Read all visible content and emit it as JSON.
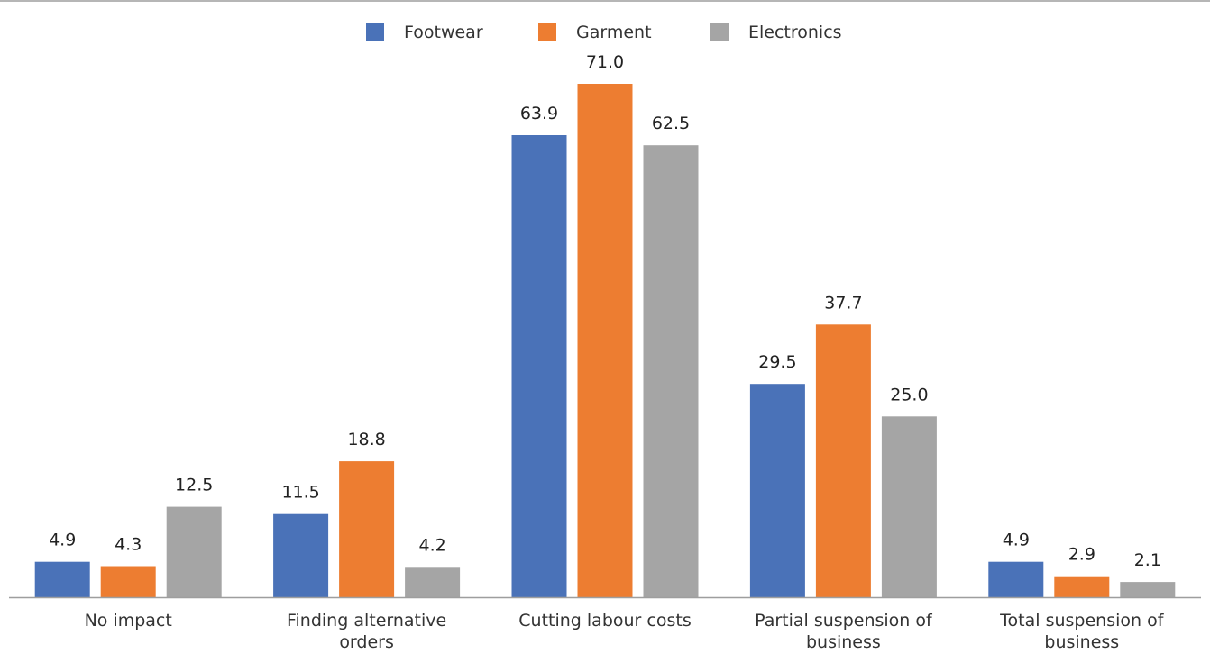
{
  "chart_data": {
    "type": "bar",
    "categories": [
      [
        "No impact"
      ],
      [
        "Finding alternative",
        "orders"
      ],
      [
        "Cutting labour costs"
      ],
      [
        "Partial suspension of",
        "business"
      ],
      [
        "Total suspension of",
        "business"
      ]
    ],
    "series": [
      {
        "name": "Footwear",
        "color": "#4a72b8",
        "values": [
          4.9,
          11.5,
          63.9,
          29.5,
          4.9
        ],
        "labels": [
          "4.9",
          "11.5",
          "63.9",
          "29.5",
          "4.9"
        ]
      },
      {
        "name": "Garment",
        "color": "#ed7d31",
        "values": [
          4.3,
          18.8,
          71.0,
          37.7,
          2.9
        ],
        "labels": [
          "4.3",
          "18.8",
          "71.0",
          "37.7",
          "2.9"
        ]
      },
      {
        "name": "Electronics",
        "color": "#a5a5a5",
        "values": [
          12.5,
          4.2,
          62.5,
          25.0,
          2.1
        ],
        "labels": [
          "12.5",
          "4.2",
          "62.5",
          "25.0",
          "2.1"
        ]
      }
    ],
    "title": "",
    "xlabel": "",
    "ylabel": "",
    "ylim": [
      0,
      75
    ],
    "grid": false,
    "legend_position": "top-center"
  }
}
